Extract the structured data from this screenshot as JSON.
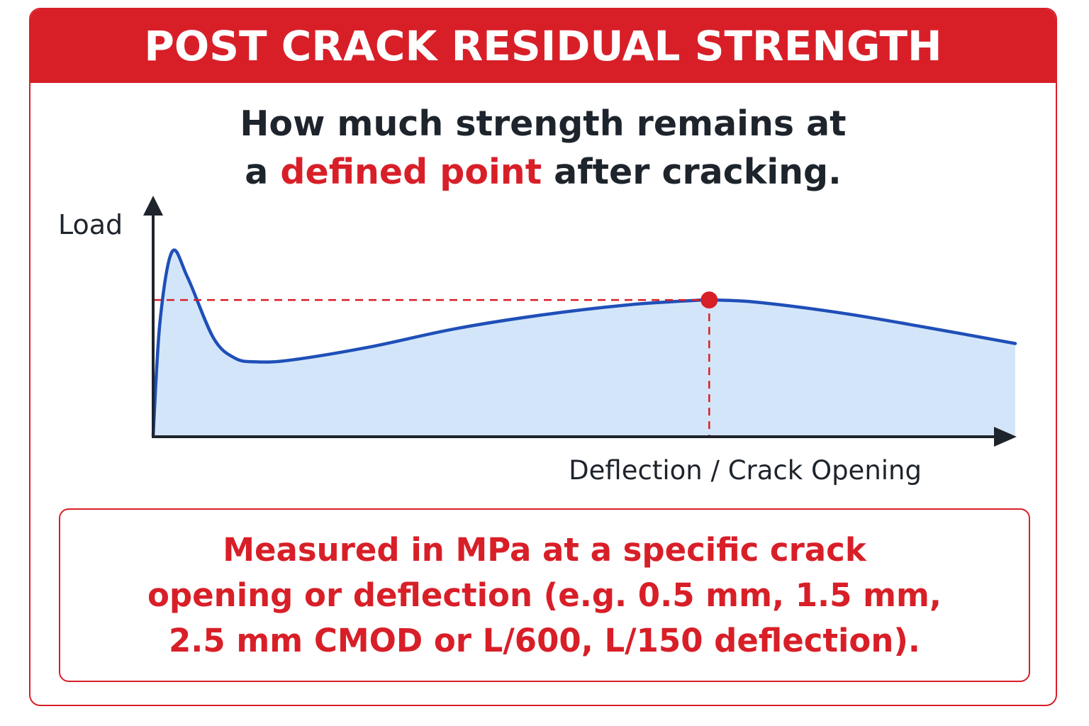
{
  "header": {
    "title": "POST CRACK RESIDUAL STRENGTH"
  },
  "subtitle": {
    "line1": "How much strength remains at",
    "line2_prefix": "a ",
    "line2_highlight": "defined point",
    "line2_suffix": " after cracking."
  },
  "diagram": {
    "y_axis_label": "Load",
    "x_axis_label": "Deflection / Crack Opening",
    "curve_points": [
      [
        0.0,
        0.0
      ],
      [
        0.008,
        0.62
      ],
      [
        0.022,
        1.0
      ],
      [
        0.04,
        0.86
      ],
      [
        0.07,
        0.53
      ],
      [
        0.095,
        0.42
      ],
      [
        0.12,
        0.4
      ],
      [
        0.16,
        0.41
      ],
      [
        0.25,
        0.48
      ],
      [
        0.35,
        0.58
      ],
      [
        0.45,
        0.655
      ],
      [
        0.55,
        0.71
      ],
      [
        0.63,
        0.735
      ],
      [
        0.645,
        0.737
      ],
      [
        0.7,
        0.725
      ],
      [
        0.8,
        0.665
      ],
      [
        0.9,
        0.585
      ],
      [
        1.0,
        0.5
      ]
    ],
    "marker_point": [
      0.645,
      0.737
    ],
    "colors": {
      "curve": "#1f4fb8",
      "fill": "#d3e6f9",
      "marker": "#d81f28",
      "axis": "#1e242c"
    }
  },
  "note": {
    "line1": "Measured in MPa at a specific crack",
    "line2": "opening or deflection (e.g. 0.5 mm, 1.5 mm,",
    "line3": "2.5 mm CMOD or L/600, L/150 deflection)."
  }
}
